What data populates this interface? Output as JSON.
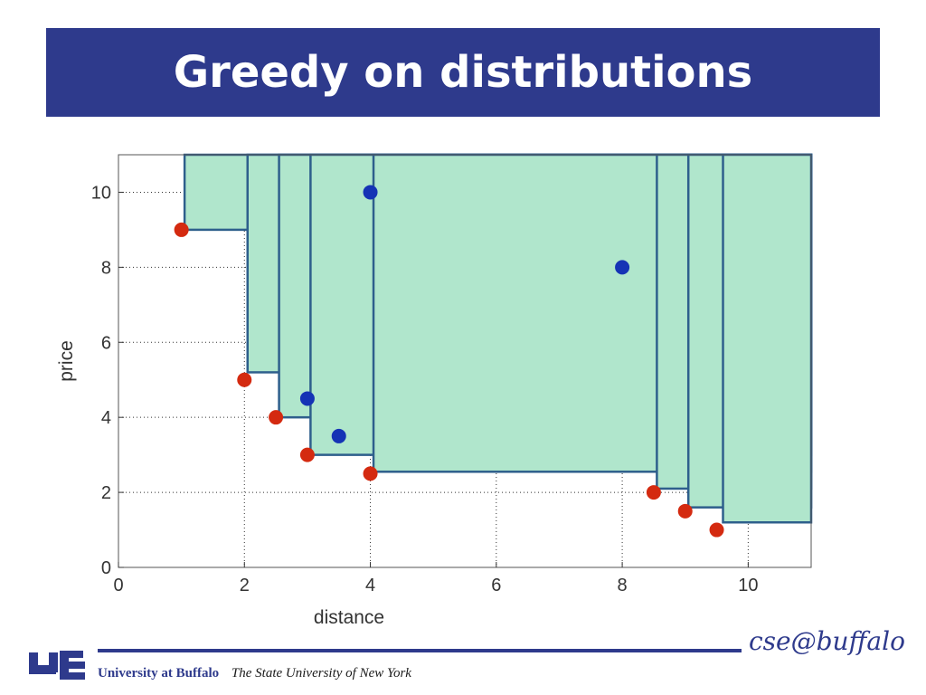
{
  "slide": {
    "title": "Greedy on distributions",
    "footer_university": "University at Buffalo",
    "footer_suny": "The State University of New York",
    "footer_logo": "UB",
    "cse_brand": "cse@buffalo"
  },
  "colors": {
    "title_bar": "#2e3a8c",
    "fill": "#b0e6cc",
    "outline": "#2e5f8c",
    "red_points": "#d42a10",
    "blue_points": "#1533b5"
  },
  "chart_data": {
    "type": "scatter",
    "xlabel": "distance",
    "ylabel": "price",
    "xlim": [
      0,
      11
    ],
    "ylim": [
      0,
      11
    ],
    "xticks": [
      0,
      2,
      4,
      6,
      8,
      10
    ],
    "yticks": [
      0,
      2,
      4,
      6,
      8,
      10
    ],
    "grid": true,
    "series": [
      {
        "color": "red",
        "points": [
          {
            "x": 1,
            "y": 9
          },
          {
            "x": 2,
            "y": 5
          },
          {
            "x": 2.5,
            "y": 4
          },
          {
            "x": 3,
            "y": 3
          },
          {
            "x": 4,
            "y": 2.5
          },
          {
            "x": 8.5,
            "y": 2
          },
          {
            "x": 9,
            "y": 1.5
          },
          {
            "x": 9.5,
            "y": 1
          }
        ]
      },
      {
        "color": "blue",
        "points": [
          {
            "x": 3,
            "y": 4.5
          },
          {
            "x": 3.5,
            "y": 3.5
          },
          {
            "x": 4,
            "y": 10
          },
          {
            "x": 8,
            "y": 8
          }
        ]
      }
    ],
    "regions": [
      {
        "x0": 1.05,
        "y0": 9.0,
        "x1": 11.0,
        "y1": 11.0
      },
      {
        "x0": 2.05,
        "y0": 5.2,
        "x1": 11.0,
        "y1": 11.0
      },
      {
        "x0": 2.55,
        "y0": 4.0,
        "x1": 11.0,
        "y1": 11.0
      },
      {
        "x0": 3.05,
        "y0": 3.0,
        "x1": 11.0,
        "y1": 11.0
      },
      {
        "x0": 4.05,
        "y0": 2.55,
        "x1": 11.0,
        "y1": 11.0
      },
      {
        "x0": 8.55,
        "y0": 2.1,
        "x1": 11.0,
        "y1": 11.0
      },
      {
        "x0": 9.05,
        "y0": 1.6,
        "x1": 11.0,
        "y1": 11.0
      },
      {
        "x0": 9.6,
        "y0": 1.2,
        "x1": 11.0,
        "y1": 11.0
      }
    ]
  }
}
